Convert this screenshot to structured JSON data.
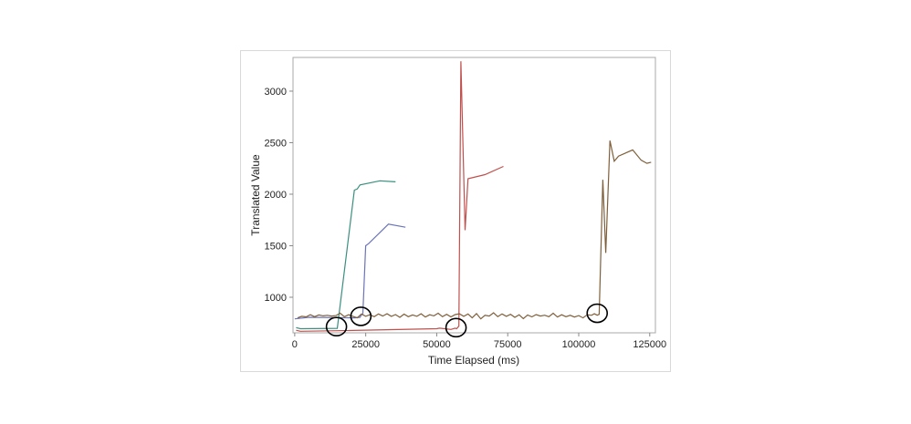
{
  "chart_data": {
    "type": "line",
    "title": "",
    "xlabel": "Time Elapsed (ms)",
    "ylabel": "Translated Value",
    "xlim": [
      -600,
      127000
    ],
    "ylim": [
      655,
      3327
    ],
    "xticks": [
      0,
      25000,
      50000,
      75000,
      100000,
      125000
    ],
    "yticks": [
      1000,
      1500,
      2000,
      2500,
      3000
    ],
    "grid": false,
    "legend": "none",
    "series": [
      {
        "color": "#3a8f7f",
        "points": [
          [
            500,
            705
          ],
          [
            2000,
            695
          ],
          [
            15000,
            698
          ],
          [
            21000,
            2040
          ],
          [
            22000,
            2050
          ],
          [
            23000,
            2090
          ],
          [
            30000,
            2130
          ],
          [
            35500,
            2120
          ]
        ]
      },
      {
        "color": "#6b74b8",
        "points": [
          [
            0,
            790
          ],
          [
            5000,
            805
          ],
          [
            21000,
            800
          ],
          [
            23000,
            805
          ],
          [
            23500,
            830
          ],
          [
            24000,
            840
          ],
          [
            25000,
            1500
          ],
          [
            26000,
            1520
          ],
          [
            33000,
            1710
          ],
          [
            39000,
            1680
          ]
        ]
      },
      {
        "color": "#c0504d",
        "points": [
          [
            500,
            680
          ],
          [
            2000,
            670
          ],
          [
            15000,
            675
          ],
          [
            50000,
            695
          ],
          [
            51000,
            700
          ],
          [
            55000,
            688
          ],
          [
            56500,
            700
          ],
          [
            57000,
            695
          ],
          [
            57800,
            720
          ],
          [
            58500,
            3290
          ],
          [
            60000,
            1650
          ],
          [
            61000,
            2150
          ],
          [
            67000,
            2190
          ],
          [
            73500,
            2270
          ]
        ]
      },
      {
        "color": "#7f5f3a",
        "points": [
          [
            1000,
            800
          ],
          [
            2500,
            815
          ],
          [
            4000,
            810
          ],
          [
            5500,
            830
          ],
          [
            7000,
            812
          ],
          [
            8500,
            828
          ],
          [
            10000,
            820
          ],
          [
            11500,
            825
          ],
          [
            13000,
            818
          ],
          [
            14500,
            822
          ],
          [
            16000,
            845
          ],
          [
            17500,
            812
          ],
          [
            19000,
            830
          ],
          [
            20500,
            815
          ],
          [
            22000,
            800
          ],
          [
            23500,
            838
          ],
          [
            25000,
            815
          ],
          [
            26500,
            830
          ],
          [
            28000,
            812
          ],
          [
            29500,
            838
          ],
          [
            31000,
            818
          ],
          [
            32500,
            840
          ],
          [
            34000,
            815
          ],
          [
            35500,
            832
          ],
          [
            37000,
            805
          ],
          [
            38500,
            836
          ],
          [
            40000,
            812
          ],
          [
            41500,
            828
          ],
          [
            43000,
            815
          ],
          [
            44500,
            840
          ],
          [
            46000,
            808
          ],
          [
            47500,
            830
          ],
          [
            49000,
            820
          ],
          [
            50500,
            845
          ],
          [
            52000,
            812
          ],
          [
            53500,
            835
          ],
          [
            55000,
            810
          ],
          [
            56500,
            832
          ],
          [
            58000,
            840
          ],
          [
            59500,
            815
          ],
          [
            61000,
            838
          ],
          [
            62500,
            800
          ],
          [
            64000,
            842
          ],
          [
            65500,
            790
          ],
          [
            67000,
            825
          ],
          [
            68500,
            818
          ],
          [
            70000,
            850
          ],
          [
            71500,
            812
          ],
          [
            73000,
            838
          ],
          [
            74500,
            815
          ],
          [
            76000,
            835
          ],
          [
            77500,
            805
          ],
          [
            79000,
            830
          ],
          [
            80500,
            792
          ],
          [
            82000,
            828
          ],
          [
            83500,
            810
          ],
          [
            85000,
            832
          ],
          [
            86500,
            818
          ],
          [
            88000,
            826
          ],
          [
            89500,
            812
          ],
          [
            91000,
            845
          ],
          [
            92500,
            808
          ],
          [
            94000,
            830
          ],
          [
            95500,
            812
          ],
          [
            97000,
            825
          ],
          [
            98500,
            808
          ],
          [
            100000,
            822
          ],
          [
            101500,
            800
          ],
          [
            103000,
            830
          ],
          [
            104500,
            825
          ],
          [
            105500,
            840
          ],
          [
            106500,
            826
          ],
          [
            107200,
            835
          ],
          [
            108500,
            2140
          ],
          [
            109500,
            1430
          ],
          [
            111000,
            2520
          ],
          [
            112500,
            2320
          ],
          [
            114000,
            2370
          ],
          [
            119000,
            2430
          ],
          [
            122000,
            2330
          ],
          [
            124000,
            2300
          ],
          [
            125500,
            2310
          ]
        ]
      }
    ],
    "annotations": [
      {
        "shape": "circle",
        "x": 14700,
        "y": 715
      },
      {
        "shape": "circle",
        "x": 23300,
        "y": 815
      },
      {
        "shape": "circle",
        "x": 56800,
        "y": 705
      },
      {
        "shape": "circle",
        "x": 106500,
        "y": 845
      }
    ]
  }
}
